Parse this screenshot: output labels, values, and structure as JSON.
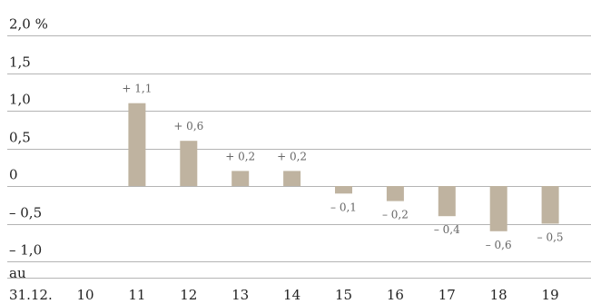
{
  "chart_data": {
    "type": "bar",
    "y_tick_labels": [
      "2,0 %",
      "1,5",
      "1,0",
      "0,5",
      "0",
      "– 0,5",
      "– 1,0"
    ],
    "y_tick_values": [
      2.0,
      1.5,
      1.0,
      0.5,
      0,
      -0.5,
      -1.0
    ],
    "ylim": [
      -1.0,
      2.0
    ],
    "grid": true,
    "x_axis_prefix": [
      "au",
      "31.12."
    ],
    "categories": [
      "10",
      "11",
      "12",
      "13",
      "14",
      "15",
      "16",
      "17",
      "18",
      "19"
    ],
    "values": [
      null,
      1.1,
      0.6,
      0.2,
      0.2,
      -0.1,
      -0.2,
      -0.4,
      -0.6,
      -0.5
    ],
    "value_labels": [
      "",
      "+ 1,1",
      "+ 0,6",
      "+ 0,2",
      "+ 0,2",
      "– 0,1",
      "– 0,2",
      "– 0,4",
      "– 0,6",
      "– 0,5"
    ],
    "bar_color": "#bfb3a0"
  }
}
